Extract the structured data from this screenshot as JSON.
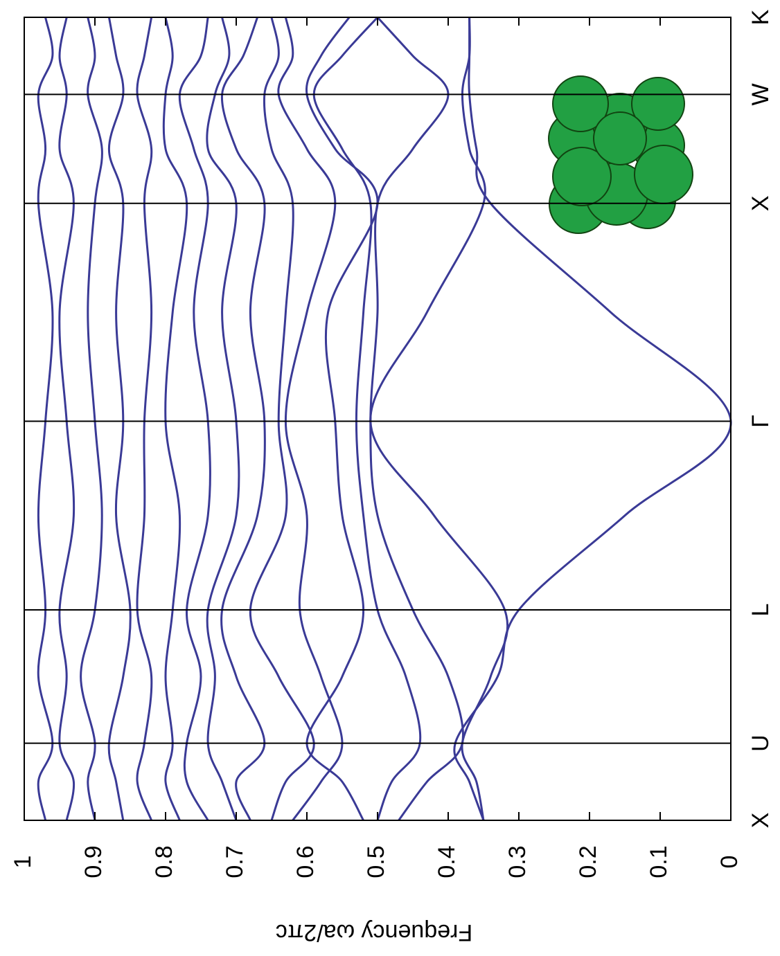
{
  "chart_data": {
    "type": "line",
    "color": "#3a3a96",
    "y_label": "Frequency  ωa/2πc",
    "x": [
      0,
      0.177,
      0.354,
      0.66,
      0.966,
      1.399,
      1.832,
      2.332,
      2.832,
      3.082,
      3.332,
      3.509,
      3.686
    ],
    "xlim": [
      0,
      3.686
    ],
    "xticks": [
      {
        "value": 0,
        "label": "X"
      },
      {
        "value": 0.354,
        "label": "U"
      },
      {
        "value": 0.966,
        "label": "L"
      },
      {
        "value": 1.832,
        "label": "Γ"
      },
      {
        "value": 2.832,
        "label": "X"
      },
      {
        "value": 3.332,
        "label": "W"
      },
      {
        "value": 3.686,
        "label": "K"
      }
    ],
    "ylim": [
      0,
      1
    ],
    "yticks": [
      0,
      0.1,
      0.2,
      0.3,
      0.4,
      0.5,
      0.6,
      0.7,
      0.8,
      0.9,
      1
    ],
    "series": [
      {
        "values": [
          0.35,
          0.37,
          0.39,
          0.33,
          0.3,
          0.15,
          0,
          0.17,
          0.34,
          0.36,
          0.37,
          0.37,
          0.37
        ]
      },
      {
        "values": [
          0.35,
          0.36,
          0.38,
          0.34,
          0.32,
          0.42,
          0.51,
          0.43,
          0.35,
          0.37,
          0.38,
          0.37,
          0.37
        ]
      },
      {
        "values": [
          0.47,
          0.43,
          0.38,
          0.4,
          0.45,
          0.5,
          0.51,
          0.5,
          0.5,
          0.45,
          0.4,
          0.45,
          0.5
        ]
      },
      {
        "values": [
          0.5,
          0.48,
          0.44,
          0.46,
          0.5,
          0.52,
          0.53,
          0.52,
          0.51,
          0.55,
          0.59,
          0.55,
          0.5
        ]
      },
      {
        "values": [
          0.52,
          0.55,
          0.6,
          0.55,
          0.52,
          0.55,
          0.56,
          0.57,
          0.5,
          0.56,
          0.6,
          0.58,
          0.54
        ]
      },
      {
        "values": [
          0.62,
          0.58,
          0.55,
          0.58,
          0.61,
          0.6,
          0.63,
          0.6,
          0.56,
          0.6,
          0.64,
          0.62,
          0.63
        ]
      },
      {
        "values": [
          0.65,
          0.63,
          0.59,
          0.64,
          0.68,
          0.63,
          0.64,
          0.63,
          0.62,
          0.65,
          0.66,
          0.64,
          0.65
        ]
      },
      {
        "values": [
          0.68,
          0.7,
          0.66,
          0.7,
          0.72,
          0.67,
          0.66,
          0.68,
          0.66,
          0.7,
          0.72,
          0.69,
          0.67
        ]
      },
      {
        "values": [
          0.7,
          0.72,
          0.74,
          0.73,
          0.74,
          0.7,
          0.7,
          0.72,
          0.7,
          0.74,
          0.73,
          0.71,
          0.72
        ]
      },
      {
        "values": [
          0.74,
          0.77,
          0.77,
          0.75,
          0.77,
          0.74,
          0.74,
          0.76,
          0.74,
          0.76,
          0.78,
          0.75,
          0.74
        ]
      },
      {
        "values": [
          0.78,
          0.8,
          0.79,
          0.8,
          0.79,
          0.78,
          0.8,
          0.79,
          0.77,
          0.8,
          0.8,
          0.79,
          0.8
        ]
      },
      {
        "values": [
          0.82,
          0.84,
          0.83,
          0.82,
          0.84,
          0.83,
          0.83,
          0.82,
          0.83,
          0.82,
          0.84,
          0.83,
          0.82
        ]
      },
      {
        "values": [
          0.86,
          0.87,
          0.88,
          0.86,
          0.85,
          0.87,
          0.86,
          0.87,
          0.86,
          0.88,
          0.86,
          0.87,
          0.88
        ]
      },
      {
        "values": [
          0.9,
          0.91,
          0.9,
          0.92,
          0.9,
          0.89,
          0.9,
          0.91,
          0.9,
          0.89,
          0.91,
          0.9,
          0.91
        ]
      },
      {
        "values": [
          0.94,
          0.93,
          0.95,
          0.94,
          0.95,
          0.93,
          0.94,
          0.95,
          0.93,
          0.95,
          0.94,
          0.95,
          0.94
        ]
      },
      {
        "values": [
          0.97,
          0.98,
          0.96,
          0.98,
          0.97,
          0.98,
          0.97,
          0.96,
          0.98,
          0.97,
          0.98,
          0.96,
          0.97
        ]
      }
    ]
  }
}
